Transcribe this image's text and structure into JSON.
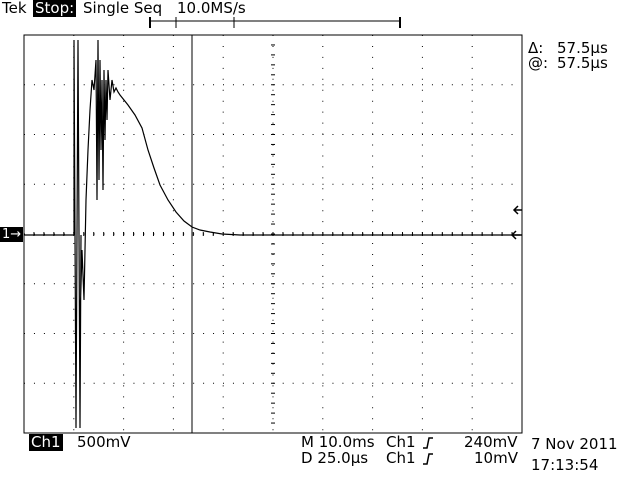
{
  "header": {
    "brand": "Tek",
    "run_state": "Stop:",
    "acquisition_mode": "Single Seq",
    "sample_rate": "10.0MS/s"
  },
  "cursor_readout": {
    "delta_label": "Δ:",
    "delta_value": "57.5µs",
    "at_label": "@:",
    "at_value": "57.5µs"
  },
  "channel_marker": {
    "label": "1→"
  },
  "footer": {
    "channel": "Ch1",
    "volts_per_div": "500mV",
    "main_timebase": "M 10.0ms",
    "delay_timebase": "D 25.0µs",
    "trigger1_source": "Ch1",
    "trigger1_slope_icon": "rising-edge-icon",
    "trigger1_level": "240mV",
    "trigger2_source": "Ch1",
    "trigger2_slope_icon": "rising-edge-icon",
    "trigger2_level": "10mV",
    "date": "7 Nov 2011",
    "time": "17:13:54"
  }
}
